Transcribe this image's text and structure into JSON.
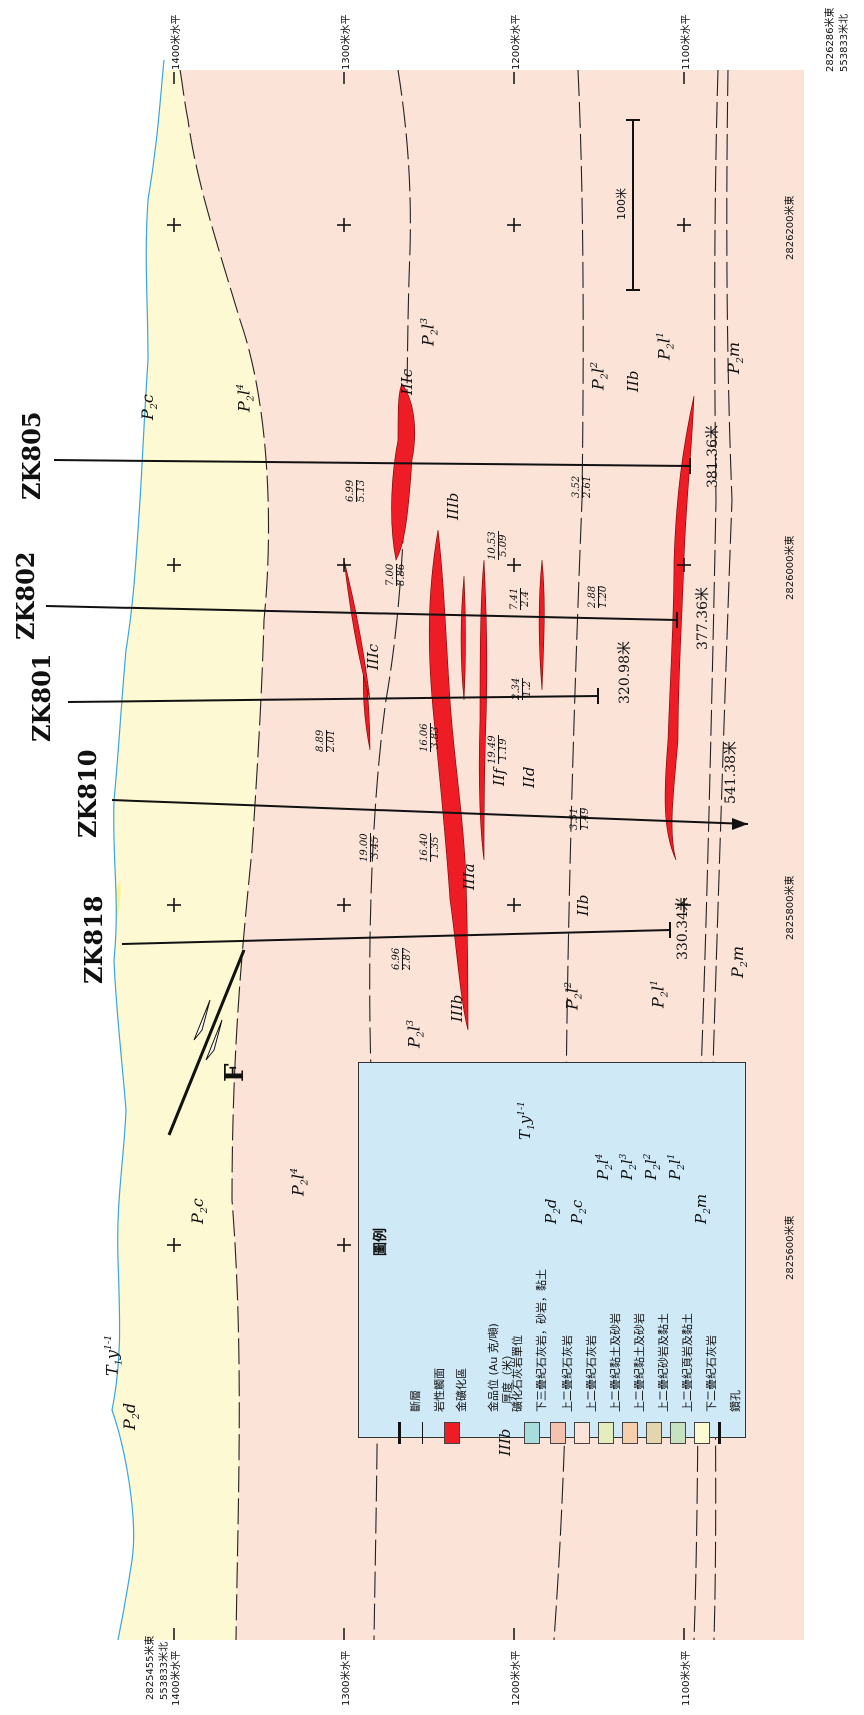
{
  "top_corner_right": {
    "line1": "2826286米東",
    "line2": "553833米北"
  },
  "bottom_corner_left": {
    "line1": "2825455米東",
    "line2": "553833米北"
  },
  "elevations": [
    {
      "top": "1400米水平",
      "bottom": "1400米水平"
    },
    {
      "top": "1300米水平",
      "bottom": "1300米水平"
    },
    {
      "top": "1200米水平",
      "bottom": "1200米水平"
    },
    {
      "top": "1100米水平",
      "bottom": "1100米水平"
    }
  ],
  "eastings": [
    "2826200米東",
    "2826000米東",
    "2825800米東",
    "2825600米東"
  ],
  "scale_bar": "100米",
  "boreholes": [
    {
      "id": "ZK805",
      "depth": "381.36米"
    },
    {
      "id": "ZK802",
      "depth": "377.36米"
    },
    {
      "id": "ZK801",
      "depth": "320.98米"
    },
    {
      "id": "ZK810",
      "depth": "541.38米"
    },
    {
      "id": "ZK818",
      "depth": "330.34米"
    }
  ],
  "fault_label": "F",
  "formations": {
    "P2c": {
      "main": "P",
      "sub": "2",
      "tail": "c"
    },
    "P2l4": {
      "main": "P",
      "sub": "2",
      "tail": "l",
      "sup": "4"
    },
    "P2l3": {
      "main": "P",
      "sub": "2",
      "tail": "l",
      "sup": "3"
    },
    "P2l2": {
      "main": "P",
      "sub": "2",
      "tail": "l",
      "sup": "2"
    },
    "P2l1": {
      "main": "P",
      "sub": "2",
      "tail": "l",
      "sup": "1"
    },
    "P2m": {
      "main": "P",
      "sub": "2",
      "tail": "m"
    },
    "P2d": {
      "main": "P",
      "sub": "2",
      "tail": "d"
    },
    "T1y": {
      "main": "T",
      "sub": "1",
      "tail": "y",
      "sup": "1-1"
    }
  },
  "ore_labels": [
    "IIIc",
    "IIIb",
    "IIIc",
    "IIIb",
    "IIIa",
    "IIf",
    "IId",
    "IIb",
    "IIb"
  ],
  "assays": [
    {
      "grade": "6.99",
      "thickness": "5.13"
    },
    {
      "grade": "7.00",
      "thickness": "8.86"
    },
    {
      "grade": "10.53",
      "thickness": "5.09"
    },
    {
      "grade": "7.41",
      "thickness": "2.4"
    },
    {
      "grade": "2.88",
      "thickness": "1.20"
    },
    {
      "grade": "3.52",
      "thickness": "2.61"
    },
    {
      "grade": "2.34",
      "thickness": "1.2"
    },
    {
      "grade": "8.89",
      "thickness": "2.01"
    },
    {
      "grade": "16.06",
      "thickness": "3.83"
    },
    {
      "grade": "19.49",
      "thickness": "1.19"
    },
    {
      "grade": "19.00",
      "thickness": "3.45"
    },
    {
      "grade": "16.40",
      "thickness": "1.35"
    },
    {
      "grade": "3.51",
      "thickness": "1.49"
    },
    {
      "grade": "6.96",
      "thickness": "2.87"
    }
  ],
  "legend": {
    "title": "圖例",
    "items": [
      {
        "label": "斷層"
      },
      {
        "label": "岩性觸面"
      },
      {
        "label": "金礦化區"
      },
      {
        "label": "金品位 (Au 克/噸)",
        "label2": "厚度（米）"
      },
      {
        "label": "礦化石灰岩單位",
        "symbol": "IIIb"
      },
      {
        "label": "下三疊紀石灰岩，砂岩，黏土",
        "code": "T1y"
      },
      {
        "label": "上二疊紀石灰岩",
        "code": "P2d"
      },
      {
        "label": "上二疊紀石灰岩",
        "code": "P2c"
      },
      {
        "label": "上二疊紀黏土及砂岩",
        "code": "P2l4"
      },
      {
        "label": "上二疊紀黏土及砂岩",
        "code": "P2l3"
      },
      {
        "label": "上二疊紀砂岩及黏土",
        "code": "P2l2"
      },
      {
        "label": "上二疊紀頁岩及黏土",
        "code": "P2l1"
      },
      {
        "label": "下二疊紀石灰岩",
        "code": "P2m"
      },
      {
        "label": "鑽孔"
      }
    ]
  },
  "colors": {
    "p2c": "#fbe3d8",
    "p2l4": "#e3edbe",
    "p2l3": "#f8cfac",
    "p2l2": "#e3d5ad",
    "p2l1": "#c7e2c0",
    "p2m": "#fdf9d2",
    "p2d": "#f5c2b0",
    "t1y": "#a9dcdc",
    "ore": "#ee1c25",
    "legend_bg": "#cfe9f7",
    "surface": "#3aa6e0",
    "yellow": "#fff08a"
  }
}
